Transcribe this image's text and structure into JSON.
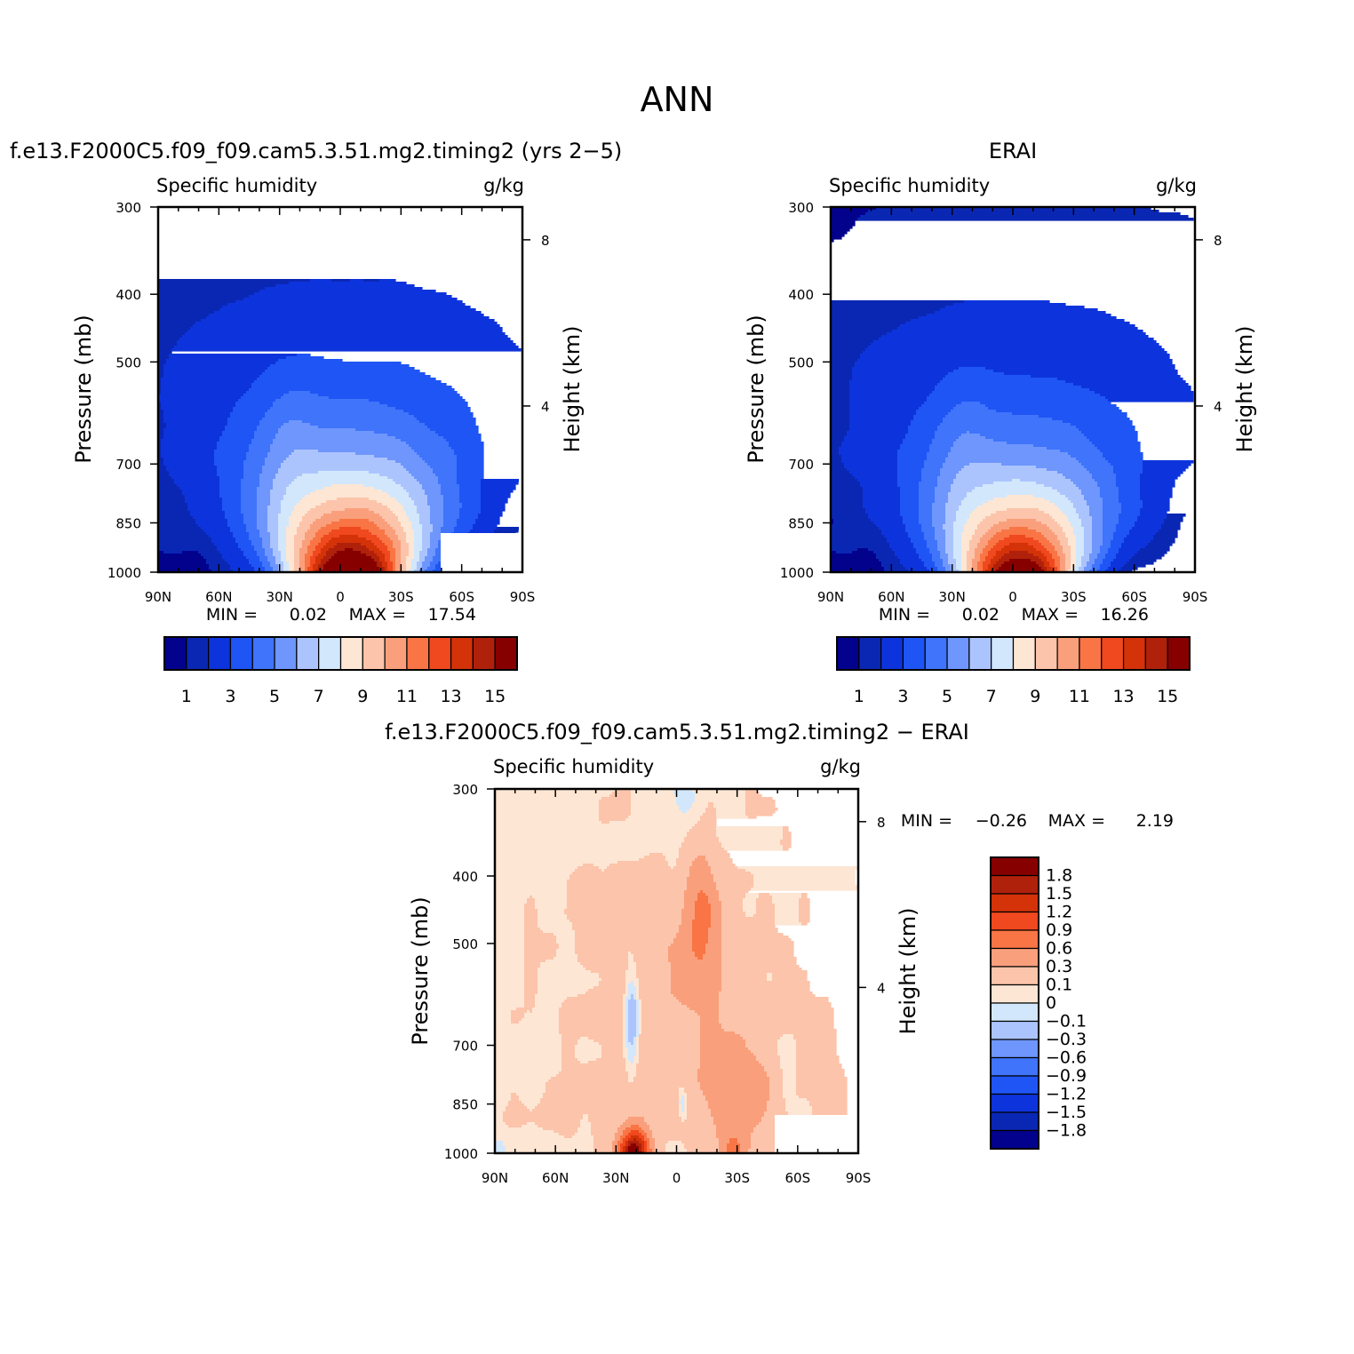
{
  "figure": {
    "title": "ANN",
    "colors": {
      "background": "#ffffff",
      "axis": "#000000"
    }
  },
  "chart_data": [
    {
      "type": "contour",
      "title": "f.e13.F2000C5.f09_f09.cam5.3.51.mg2.timing2 (yrs 2−5)",
      "left_label": "Specific humidity",
      "right_label": "g/kg",
      "xlabel": "",
      "ylabel": "Pressure (mb)",
      "ylabel_right": "Height (km)",
      "x_ticks": [
        "90N",
        "60N",
        "30N",
        "0",
        "30S",
        "60S",
        "90S"
      ],
      "x_range_deg_lat": [
        90,
        -90
      ],
      "y_ticks": [
        300,
        400,
        500,
        700,
        850,
        1000
      ],
      "y_range_mb": [
        300,
        1000
      ],
      "y_scale": "log",
      "right_ticks_km": [
        8,
        4
      ],
      "min_label": "MIN =",
      "min": "0.02",
      "max_label": "MAX =",
      "max": "17.54",
      "contour_levels": [
        0.5,
        1,
        2,
        3,
        4,
        5,
        6,
        7,
        8,
        9,
        10,
        11,
        12,
        13,
        14,
        15
      ],
      "colorbar": {
        "orientation": "horizontal",
        "colors": [
          "#02028c",
          "#0a27b4",
          "#0d34dc",
          "#1f55f5",
          "#3f74fb",
          "#6e96fc",
          "#acc4fd",
          "#d2e7fb",
          "#fde6d4",
          "#fcc4ab",
          "#fa9f7c",
          "#f97545",
          "#f0481f",
          "#d43209",
          "#b0210b",
          "#870000"
        ],
        "tick_labels": [
          "1",
          "3",
          "5",
          "7",
          "9",
          "11",
          "13",
          "15"
        ]
      },
      "field_model": {
        "peak_lat": -5,
        "peak_value": 17.54,
        "width_lat": 30,
        "decay_height": 2.2,
        "background": 0.3
      },
      "masked_surface": "white box near 60S–90S below ~900 mb (topography)"
    },
    {
      "type": "contour",
      "title": "ERAI",
      "left_label": "Specific humidity",
      "right_label": "g/kg",
      "xlabel": "",
      "ylabel": "Pressure (mb)",
      "ylabel_right": "Height (km)",
      "x_ticks": [
        "90N",
        "60N",
        "30N",
        "0",
        "30S",
        "60S",
        "90S"
      ],
      "x_range_deg_lat": [
        90,
        -90
      ],
      "y_ticks": [
        300,
        400,
        500,
        700,
        850,
        1000
      ],
      "y_range_mb": [
        300,
        1000
      ],
      "y_scale": "log",
      "right_ticks_km": [
        8,
        4
      ],
      "min_label": "MIN =",
      "min": "0.02",
      "max_label": "MAX =",
      "max": "16.26",
      "contour_levels": [
        0.5,
        1,
        2,
        3,
        4,
        5,
        6,
        7,
        8,
        9,
        10,
        11,
        12,
        13,
        14,
        15
      ],
      "colorbar": {
        "orientation": "horizontal",
        "colors": [
          "#02028c",
          "#0a27b4",
          "#0d34dc",
          "#1f55f5",
          "#3f74fb",
          "#6e96fc",
          "#acc4fd",
          "#d2e7fb",
          "#fde6d4",
          "#fcc4ab",
          "#fa9f7c",
          "#f97545",
          "#f0481f",
          "#d43209",
          "#b0210b",
          "#870000"
        ],
        "tick_labels": [
          "1",
          "3",
          "5",
          "7",
          "9",
          "11",
          "13",
          "15"
        ]
      },
      "field_model": {
        "peak_lat": -3,
        "peak_value": 16.26,
        "width_lat": 29,
        "decay_height": 2.1,
        "background": 0.3
      }
    },
    {
      "type": "contour",
      "title": "f.e13.F2000C5.f09_f09.cam5.3.51.mg2.timing2 − ERAI",
      "left_label": "Specific humidity",
      "right_label": "g/kg",
      "xlabel": "",
      "ylabel": "Pressure (mb)",
      "ylabel_right": "Height (km)",
      "x_ticks": [
        "90N",
        "60N",
        "30N",
        "0",
        "30S",
        "60S",
        "90S"
      ],
      "x_range_deg_lat": [
        90,
        -90
      ],
      "y_ticks": [
        300,
        400,
        500,
        700,
        850,
        1000
      ],
      "y_range_mb": [
        300,
        1000
      ],
      "y_scale": "log",
      "right_ticks_km": [
        8,
        4
      ],
      "min_label": "MIN =",
      "min": "−0.26",
      "max_label": "MAX =",
      "max": "2.19",
      "contour_levels": [
        -1.8,
        -1.5,
        -1.2,
        -0.9,
        -0.6,
        -0.3,
        -0.1,
        0,
        0.1,
        0.3,
        0.6,
        0.9,
        1.2,
        1.5,
        1.8
      ],
      "colorbar": {
        "orientation": "vertical",
        "colors_top_to_bottom": [
          "#870000",
          "#b0210b",
          "#d43209",
          "#f0481f",
          "#f97545",
          "#fa9f7c",
          "#fcc4ab",
          "#fde6d4",
          "#d2e7fb",
          "#acc4fd",
          "#6e96fc",
          "#3f74fb",
          "#1f55f5",
          "#0d34dc",
          "#0a27b4",
          "#02028c"
        ],
        "tick_labels_top_to_bottom": [
          "1.8",
          "1.5",
          "1.2",
          "0.9",
          "0.6",
          "0.3",
          "0.1",
          "0",
          "−0.1",
          "−0.3",
          "−0.6",
          "−0.9",
          "−1.2",
          "−1.5",
          "−1.8"
        ]
      },
      "masked_surface": "white box near 60S–90S below ~900 mb (topography)"
    }
  ]
}
